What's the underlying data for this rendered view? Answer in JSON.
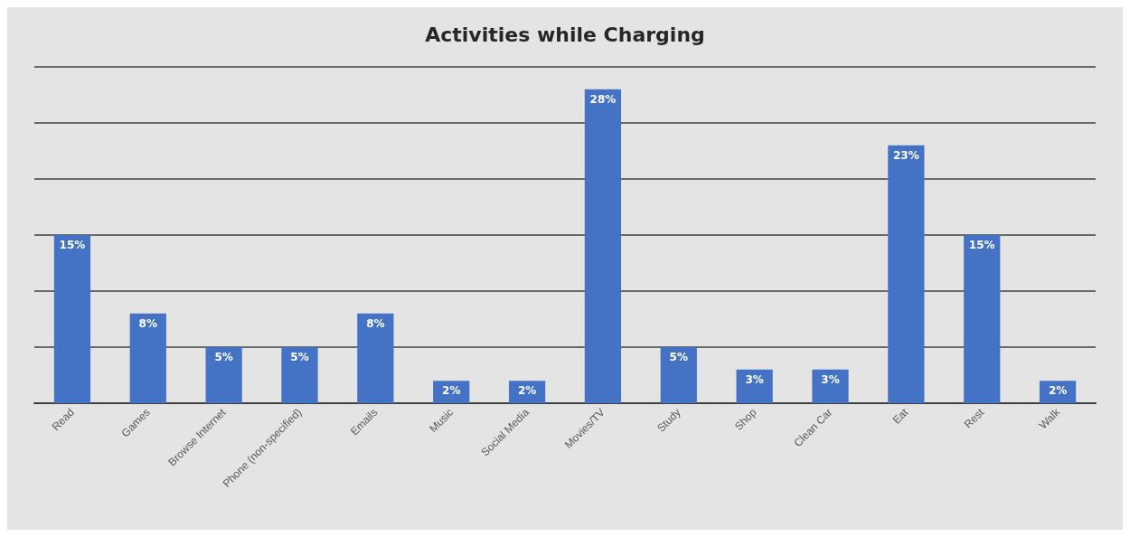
{
  "chart_data": {
    "type": "bar",
    "title": "Activities while Charging",
    "categories": [
      "Read",
      "Games",
      "Browse Internet",
      "Phone (non-specified)",
      "Emails",
      "Music",
      "Social Media",
      "Movies/TV",
      "Study",
      "Shop",
      "Clean Car",
      "Eat",
      "Rest",
      "Walk"
    ],
    "values": [
      15,
      8,
      5,
      5,
      8,
      2,
      2,
      28,
      5,
      3,
      3,
      23,
      15,
      2
    ],
    "value_labels": [
      "15%",
      "8%",
      "5%",
      "5%",
      "8%",
      "2%",
      "2%",
      "28%",
      "5%",
      "3%",
      "3%",
      "23%",
      "15%",
      "2%"
    ],
    "color": "#4472c4",
    "ylim": [
      0,
      30
    ],
    "yticks": [
      {
        "value": 0,
        "label": null
      },
      {
        "value": 5,
        "label": null
      },
      {
        "value": 10,
        "label": null
      },
      {
        "value": 15,
        "label": null
      },
      {
        "value": 20,
        "label": null
      },
      {
        "value": 25,
        "label": null
      },
      {
        "value": 30,
        "label": null
      }
    ],
    "grid": "y",
    "tick_labels": "x"
  }
}
